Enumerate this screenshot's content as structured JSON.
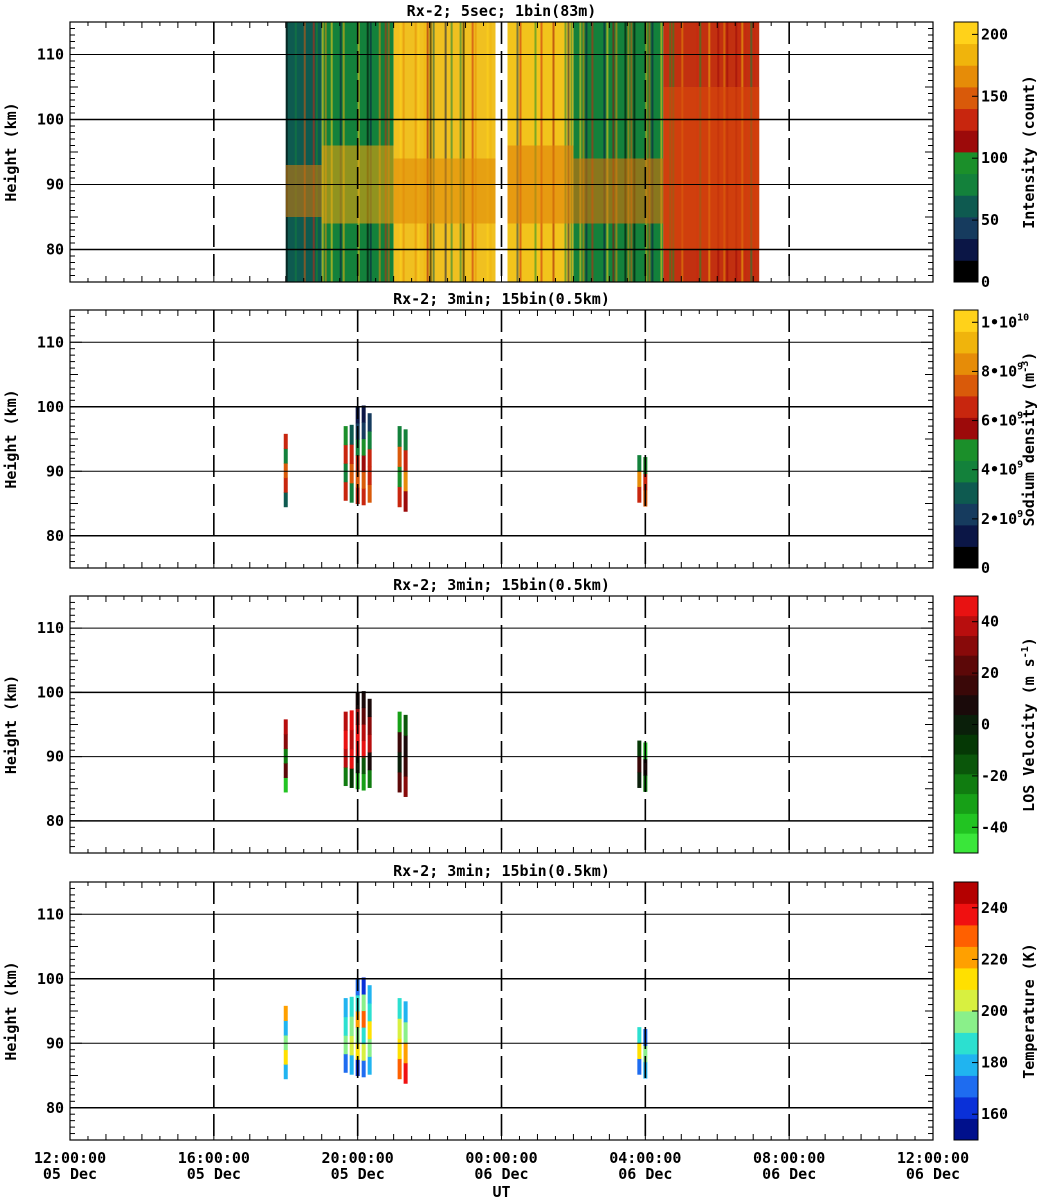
{
  "chart_data": [
    {
      "type": "heatmap",
      "title": "Rx-2;  5sec; 1bin(83m)",
      "ylabel": "Height (km)",
      "ylim": [
        75,
        115
      ],
      "yticks": [
        "80",
        "90",
        "100",
        "110"
      ],
      "colorbar": {
        "label": "Intensity (count)",
        "range": [
          0,
          210
        ],
        "ticks": [
          "0",
          "50",
          "100",
          "150",
          "200"
        ],
        "colors": [
          "#000000",
          "#0b1646",
          "#163b5e",
          "#0e5a50",
          "#13813b",
          "#1b8f2a",
          "#9c0a0a",
          "#c8260e",
          "#d95a0a",
          "#e68c08",
          "#f0b40c",
          "#ffd21a"
        ]
      },
      "segments": [
        {
          "start": "2023-12-05T18:00",
          "end": "2023-12-05T19:00",
          "bg": "#0e5a50",
          "layer": "#c8760e",
          "layer_km": [
            85,
            93
          ]
        },
        {
          "start": "2023-12-05T19:00",
          "end": "2023-12-05T21:00",
          "bg": "#13813b",
          "layer": "#e6a00e",
          "layer_km": [
            84,
            96
          ]
        },
        {
          "start": "2023-12-05T21:00",
          "end": "2023-12-05T23:50",
          "bg": "#f0c020",
          "layer": "#e08a0a",
          "layer_km": [
            84,
            94
          ]
        },
        {
          "start": "2023-12-06T00:10",
          "end": "2023-12-06T02:00",
          "bg": "#f2c41c",
          "layer": "#e0800a",
          "layer_km": [
            84,
            96
          ]
        },
        {
          "start": "2023-12-06T02:00",
          "end": "2023-12-06T04:30",
          "bg": "#13813b",
          "layer": "#d9720a",
          "layer_km": [
            84,
            94
          ]
        },
        {
          "start": "2023-12-06T04:30",
          "end": "2023-12-06T07:10",
          "bg": "#c23010",
          "layer": "#d94a0c",
          "layer_km": [
            80,
            105
          ]
        }
      ]
    },
    {
      "type": "heatmap",
      "title": "Rx-2; 3min; 15bin(0.5km)",
      "ylabel": "Height (km)",
      "ylim": [
        75,
        115
      ],
      "yticks": [
        "80",
        "90",
        "100",
        "110"
      ],
      "colorbar": {
        "label": "Sodium density (m",
        "label_sup": "-3",
        "label_end": ")",
        "range": [
          0,
          10500000000.0
        ],
        "ticks": [
          {
            "base": "0",
            "exp": ""
          },
          {
            "base": "2•10",
            "exp": "9"
          },
          {
            "base": "4•10",
            "exp": "9"
          },
          {
            "base": "6•10",
            "exp": "9"
          },
          {
            "base": "8•10",
            "exp": "9"
          },
          {
            "base": "1•10",
            "exp": "10"
          }
        ],
        "colors": [
          "#000000",
          "#0b1646",
          "#163b5e",
          "#0e5a50",
          "#13813b",
          "#1b8f2a",
          "#9c0a0a",
          "#c8260e",
          "#d95a0a",
          "#e68c08",
          "#f0b40c",
          "#ffd21a"
        ]
      },
      "columns": [
        {
          "t": "2023-12-05T18:00",
          "bottom": 84.5,
          "top": 95.8,
          "profile": [
            "#0e5a50",
            "#c8260e",
            "#d95a0a",
            "#13813b",
            "#c8260e"
          ]
        },
        {
          "t": "2023-12-05T19:40",
          "bottom": 85.5,
          "top": 97.0,
          "profile": [
            "#c8260e",
            "#13813b",
            "#c8260e",
            "#1b8f2a"
          ]
        },
        {
          "t": "2023-12-05T19:50",
          "bottom": 85.2,
          "top": 97.2,
          "profile": [
            "#13813b",
            "#d95a0a",
            "#c8260e",
            "#0e5a50"
          ]
        },
        {
          "t": "2023-12-05T20:00",
          "bottom": 85.0,
          "top": 100.0,
          "profile": [
            "#c8260e",
            "#d95a0a",
            "#c8260e",
            "#13813b",
            "#163b5e",
            "#0b1646"
          ]
        },
        {
          "t": "2023-12-05T20:10",
          "bottom": 84.8,
          "top": 100.2,
          "profile": [
            "#c8260e",
            "#d95a0a",
            "#9c0a0a",
            "#1b8f2a",
            "#163b5e",
            "#0b1646"
          ]
        },
        {
          "t": "2023-12-05T20:20",
          "bottom": 85.2,
          "top": 99.0,
          "profile": [
            "#d95a0a",
            "#c8260e",
            "#c8260e",
            "#13813b",
            "#163b5e"
          ]
        },
        {
          "t": "2023-12-05T21:10",
          "bottom": 84.5,
          "top": 97.0,
          "profile": [
            "#c8260e",
            "#1b8f2a",
            "#d95a0a",
            "#13813b"
          ]
        },
        {
          "t": "2023-12-05T21:20",
          "bottom": 83.8,
          "top": 96.5,
          "profile": [
            "#9c0a0a",
            "#e68c08",
            "#c8260e",
            "#13813b"
          ]
        },
        {
          "t": "2023-12-06T03:50",
          "bottom": 85.2,
          "top": 92.5,
          "profile": [
            "#c8260e",
            "#e68c08",
            "#13813b"
          ]
        },
        {
          "t": "2023-12-06T04:00",
          "bottom": 84.6,
          "top": 92.2,
          "profile": [
            "#d95a0a",
            "#c8260e",
            "#1b8f2a"
          ]
        }
      ]
    },
    {
      "type": "heatmap",
      "title": "Rx-2; 3min; 15bin(0.5km)",
      "ylabel": "Height (km)",
      "ylim": [
        75,
        115
      ],
      "yticks": [
        "80",
        "90",
        "100",
        "110"
      ],
      "colorbar": {
        "label": "LOS Velocity (m s",
        "label_sup": "-1",
        "label_end": ")",
        "range": [
          -50,
          50
        ],
        "ticks": [
          "-40",
          "-20",
          "0",
          "20",
          "40"
        ],
        "colors": [
          "#3ae63a",
          "#22c422",
          "#17a017",
          "#107c10",
          "#0a560a",
          "#053805",
          "#0a1f0a",
          "#1a0a0a",
          "#3a0808",
          "#5c0808",
          "#880a0a",
          "#b80e0e",
          "#e81212"
        ]
      },
      "columns": [
        {
          "t": "2023-12-05T18:00",
          "bottom": 84.5,
          "top": 95.8,
          "profile": [
            "#22c422",
            "#5c0808",
            "#107c10",
            "#880a0a",
            "#b80e0e"
          ]
        },
        {
          "t": "2023-12-05T19:40",
          "bottom": 85.5,
          "top": 97.0,
          "profile": [
            "#107c10",
            "#b80e0e",
            "#e81212",
            "#b80e0e"
          ]
        },
        {
          "t": "2023-12-05T19:50",
          "bottom": 85.2,
          "top": 97.2,
          "profile": [
            "#053805",
            "#e81212",
            "#b80e0e",
            "#e81212"
          ]
        },
        {
          "t": "2023-12-05T20:00",
          "bottom": 85.0,
          "top": 100.0,
          "profile": [
            "#22c422",
            "#0a1f0a",
            "#e81212",
            "#e81212",
            "#880a0a",
            "#1a0a0a"
          ]
        },
        {
          "t": "2023-12-05T20:10",
          "bottom": 84.8,
          "top": 100.2,
          "profile": [
            "#17a017",
            "#0a560a",
            "#e81212",
            "#b80e0e",
            "#5c0808",
            "#1a0a0a"
          ]
        },
        {
          "t": "2023-12-05T20:20",
          "bottom": 85.2,
          "top": 99.0,
          "profile": [
            "#107c10",
            "#1a0a0a",
            "#b80e0e",
            "#880a0a",
            "#1a0a0a"
          ]
        },
        {
          "t": "2023-12-05T21:10",
          "bottom": 84.5,
          "top": 97.0,
          "profile": [
            "#5c0808",
            "#0a1f0a",
            "#3a0808",
            "#17a017"
          ]
        },
        {
          "t": "2023-12-05T21:20",
          "bottom": 83.8,
          "top": 96.5,
          "profile": [
            "#880a0a",
            "#3a0808",
            "#1a0a0a",
            "#0a560a"
          ]
        },
        {
          "t": "2023-12-06T03:50",
          "bottom": 85.2,
          "top": 92.5,
          "profile": [
            "#0a1f0a",
            "#3a0808",
            "#053805"
          ]
        },
        {
          "t": "2023-12-06T04:00",
          "bottom": 84.6,
          "top": 92.2,
          "profile": [
            "#107c10",
            "#1a0a0a",
            "#22c422"
          ]
        }
      ]
    },
    {
      "type": "heatmap",
      "title": "Rx-2; 3min; 15bin(0.5km)",
      "ylabel": "Height (km)",
      "xlabel": "UT",
      "ylim": [
        75,
        115
      ],
      "yticks": [
        "80",
        "90",
        "100",
        "110"
      ],
      "xlim": [
        "2023-12-05T12:00",
        "2023-12-06T12:00"
      ],
      "xticks": [
        {
          "time": "12:00:00",
          "date": "05 Dec"
        },
        {
          "time": "16:00:00",
          "date": "05 Dec"
        },
        {
          "time": "20:00:00",
          "date": "05 Dec"
        },
        {
          "time": "00:00:00",
          "date": "06 Dec"
        },
        {
          "time": "04:00:00",
          "date": "06 Dec"
        },
        {
          "time": "08:00:00",
          "date": "06 Dec"
        },
        {
          "time": "12:00:00",
          "date": "06 Dec"
        }
      ],
      "colorbar": {
        "label": "Temperature (K)",
        "range": [
          150,
          250
        ],
        "ticks": [
          "160",
          "180",
          "200",
          "220",
          "240"
        ],
        "colors": [
          "#00108c",
          "#0a30d8",
          "#1e6cf0",
          "#20b4f0",
          "#2ce0d0",
          "#8af08a",
          "#d8f040",
          "#ffe000",
          "#ffa000",
          "#ff6000",
          "#f01010",
          "#b40000"
        ]
      },
      "columns": [
        {
          "t": "2023-12-05T18:00",
          "bottom": 84.5,
          "top": 95.8,
          "profile": [
            "#20b4f0",
            "#ffe000",
            "#8af08a",
            "#20b4f0",
            "#ffa000"
          ]
        },
        {
          "t": "2023-12-05T19:40",
          "bottom": 85.5,
          "top": 97.0,
          "profile": [
            "#1e6cf0",
            "#8af08a",
            "#2ce0d0",
            "#20b4f0"
          ]
        },
        {
          "t": "2023-12-05T19:50",
          "bottom": 85.2,
          "top": 97.2,
          "profile": [
            "#20b4f0",
            "#d8f040",
            "#8af08a",
            "#2ce0d0"
          ]
        },
        {
          "t": "2023-12-05T20:00",
          "bottom": 85.0,
          "top": 100.0,
          "profile": [
            "#0a30d8",
            "#ffe000",
            "#8af08a",
            "#ffa000",
            "#2ce0d0",
            "#1e6cf0"
          ]
        },
        {
          "t": "2023-12-05T20:10",
          "bottom": 84.8,
          "top": 100.2,
          "profile": [
            "#1e6cf0",
            "#d8f040",
            "#2ce0d0",
            "#ff6000",
            "#8af08a",
            "#0a30d8"
          ]
        },
        {
          "t": "2023-12-05T20:20",
          "bottom": 85.2,
          "top": 99.0,
          "profile": [
            "#20b4f0",
            "#8af08a",
            "#ffe000",
            "#2ce0d0",
            "#20b4f0"
          ]
        },
        {
          "t": "2023-12-05T21:10",
          "bottom": 84.5,
          "top": 97.0,
          "profile": [
            "#ff6000",
            "#ffe000",
            "#d8f040",
            "#2ce0d0"
          ]
        },
        {
          "t": "2023-12-05T21:20",
          "bottom": 83.8,
          "top": 96.5,
          "profile": [
            "#f01010",
            "#ffa000",
            "#8af08a",
            "#20b4f0"
          ]
        },
        {
          "t": "2023-12-06T03:50",
          "bottom": 85.2,
          "top": 92.5,
          "profile": [
            "#1e6cf0",
            "#ffe000",
            "#2ce0d0"
          ]
        },
        {
          "t": "2023-12-06T04:00",
          "bottom": 84.6,
          "top": 92.2,
          "profile": [
            "#20b4f0",
            "#8af08a",
            "#1e6cf0"
          ]
        }
      ]
    }
  ]
}
